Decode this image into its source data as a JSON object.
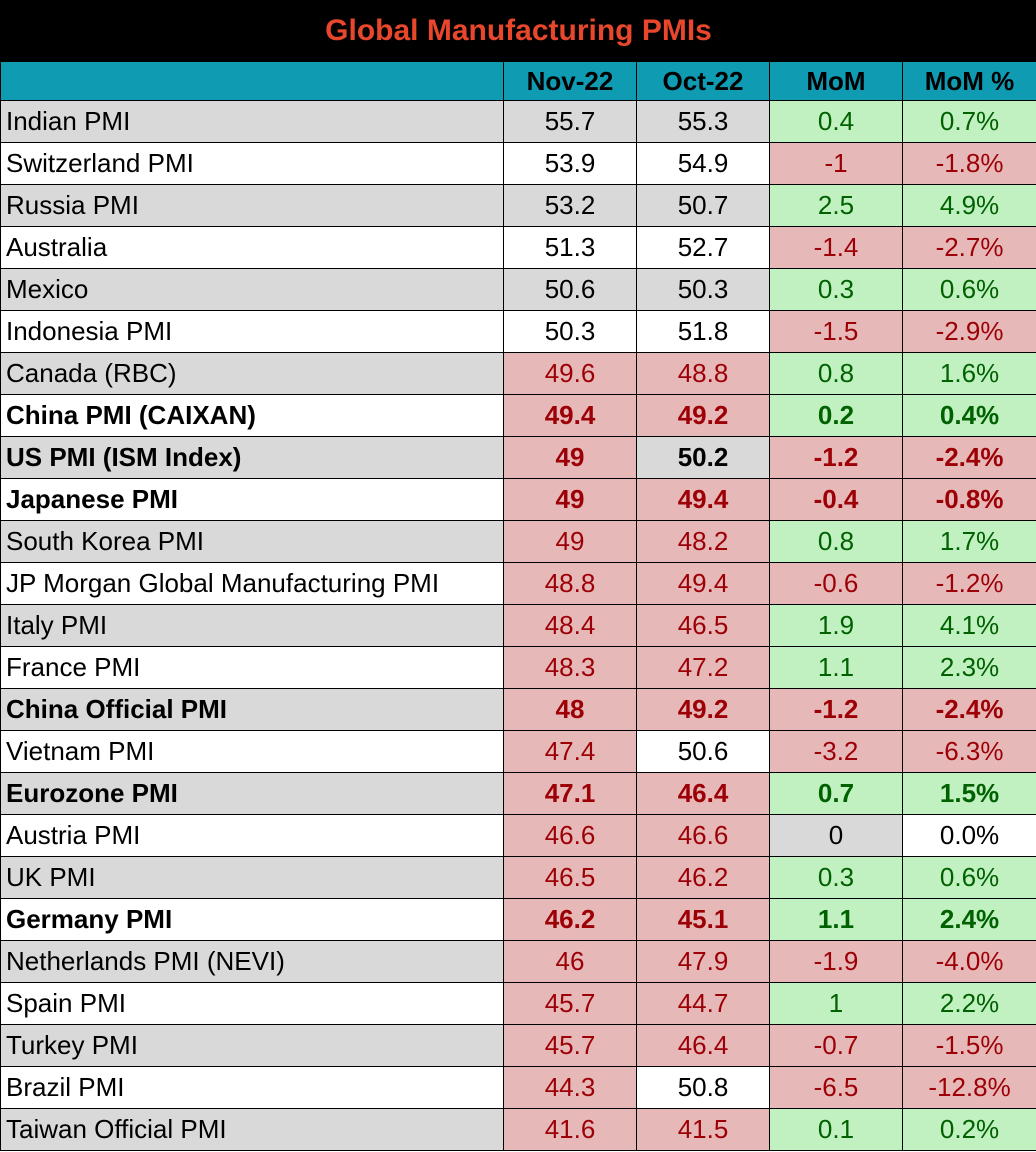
{
  "title": "Global Manufacturing PMIs",
  "colors": {
    "title_bg": "#000000",
    "title_text": "#e8472c",
    "header_bg": "#0f9bb2",
    "row_gray": "#d9d9d9",
    "row_white": "#ffffff",
    "negative_fill": "#e6b8b7",
    "negative_text": "#9c0006",
    "positive_fill": "#c1f0c1",
    "positive_text": "#006100",
    "neutral_fill": "#d9d9d9"
  },
  "chart_data": {
    "type": "table",
    "columns": [
      "",
      "Nov-22",
      "Oct-22",
      "MoM",
      "MoM %"
    ],
    "rows": [
      {
        "name": "Indian PMI",
        "nov": "55.7",
        "oct": "55.3",
        "mom": "0.4",
        "mom_pct": "0.7%",
        "bold": false
      },
      {
        "name": "Switzerland PMI",
        "nov": "53.9",
        "oct": "54.9",
        "mom": "-1",
        "mom_pct": "-1.8%",
        "bold": false
      },
      {
        "name": "Russia PMI",
        "nov": "53.2",
        "oct": "50.7",
        "mom": "2.5",
        "mom_pct": "4.9%",
        "bold": false
      },
      {
        "name": "Australia",
        "nov": "51.3",
        "oct": "52.7",
        "mom": "-1.4",
        "mom_pct": "-2.7%",
        "bold": false
      },
      {
        "name": "Mexico",
        "nov": "50.6",
        "oct": "50.3",
        "mom": "0.3",
        "mom_pct": "0.6%",
        "bold": false
      },
      {
        "name": "Indonesia PMI",
        "nov": "50.3",
        "oct": "51.8",
        "mom": "-1.5",
        "mom_pct": "-2.9%",
        "bold": false
      },
      {
        "name": "Canada (RBC)",
        "nov": "49.6",
        "oct": "48.8",
        "mom": "0.8",
        "mom_pct": "1.6%",
        "bold": false
      },
      {
        "name": "China PMI (CAIXAN)",
        "nov": "49.4",
        "oct": "49.2",
        "mom": "0.2",
        "mom_pct": "0.4%",
        "bold": true
      },
      {
        "name": "US PMI (ISM Index)",
        "nov": "49",
        "oct": "50.2",
        "mom": "-1.2",
        "mom_pct": "-2.4%",
        "bold": true
      },
      {
        "name": "Japanese PMI",
        "nov": "49",
        "oct": "49.4",
        "mom": "-0.4",
        "mom_pct": "-0.8%",
        "bold": true
      },
      {
        "name": "South Korea PMI",
        "nov": "49",
        "oct": "48.2",
        "mom": "0.8",
        "mom_pct": "1.7%",
        "bold": false
      },
      {
        "name": "JP Morgan Global Manufacturing PMI",
        "nov": "48.8",
        "oct": "49.4",
        "mom": "-0.6",
        "mom_pct": "-1.2%",
        "bold": false
      },
      {
        "name": "Italy PMI",
        "nov": "48.4",
        "oct": "46.5",
        "mom": "1.9",
        "mom_pct": "4.1%",
        "bold": false
      },
      {
        "name": "France PMI",
        "nov": "48.3",
        "oct": "47.2",
        "mom": "1.1",
        "mom_pct": "2.3%",
        "bold": false
      },
      {
        "name": "China Official PMI",
        "nov": "48",
        "oct": "49.2",
        "mom": "-1.2",
        "mom_pct": "-2.4%",
        "bold": true
      },
      {
        "name": "Vietnam PMI",
        "nov": "47.4",
        "oct": "50.6",
        "mom": "-3.2",
        "mom_pct": "-6.3%",
        "bold": false
      },
      {
        "name": "Eurozone PMI",
        "nov": "47.1",
        "oct": "46.4",
        "mom": "0.7",
        "mom_pct": "1.5%",
        "bold": true
      },
      {
        "name": "Austria PMI",
        "nov": "46.6",
        "oct": "46.6",
        "mom": "0",
        "mom_pct": "0.0%",
        "bold": false
      },
      {
        "name": "UK PMI",
        "nov": "46.5",
        "oct": "46.2",
        "mom": "0.3",
        "mom_pct": "0.6%",
        "bold": false
      },
      {
        "name": "Germany PMI",
        "nov": "46.2",
        "oct": "45.1",
        "mom": "1.1",
        "mom_pct": "2.4%",
        "bold": true
      },
      {
        "name": "Netherlands PMI (NEVI)",
        "nov": "46",
        "oct": "47.9",
        "mom": "-1.9",
        "mom_pct": "-4.0%",
        "bold": false
      },
      {
        "name": "Spain PMI",
        "nov": "45.7",
        "oct": "44.7",
        "mom": "1",
        "mom_pct": "2.2%",
        "bold": false
      },
      {
        "name": "Turkey PMI",
        "nov": "45.7",
        "oct": "46.4",
        "mom": "-0.7",
        "mom_pct": "-1.5%",
        "bold": false
      },
      {
        "name": "Brazil PMI",
        "nov": "44.3",
        "oct": "50.8",
        "mom": "-6.5",
        "mom_pct": "-12.8%",
        "bold": false
      },
      {
        "name": "Taiwan Official PMI",
        "nov": "41.6",
        "oct": "41.5",
        "mom": "0.1",
        "mom_pct": "0.2%",
        "bold": false
      }
    ]
  }
}
